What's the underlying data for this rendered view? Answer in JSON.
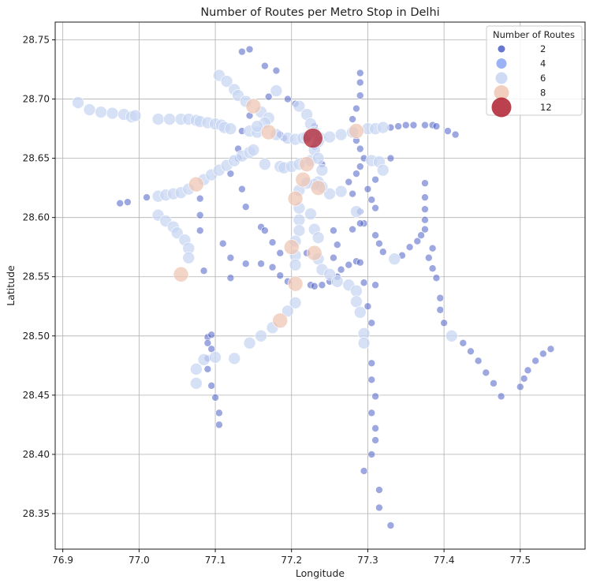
{
  "chart_data": {
    "type": "scatter",
    "title": "Number of Routes per Metro Stop in Delhi",
    "xlabel": "Longitude",
    "ylabel": "Latitude",
    "xlim": [
      76.89,
      77.585
    ],
    "ylim": [
      28.32,
      28.765
    ],
    "xticks": [
      "76.9",
      "77.0",
      "77.1",
      "77.2",
      "77.3",
      "77.4",
      "77.5"
    ],
    "yticks": [
      "28.35",
      "28.40",
      "28.45",
      "28.50",
      "28.55",
      "28.60",
      "28.65",
      "28.70",
      "28.75"
    ],
    "grid": true,
    "legend": {
      "title": "Number of Routes",
      "placement": "top-right",
      "entries": [
        {
          "label": "2",
          "routes": 2
        },
        {
          "label": "4",
          "routes": 4
        },
        {
          "label": "6",
          "routes": 6
        },
        {
          "label": "8",
          "routes": 8
        },
        {
          "label": "12",
          "routes": 12
        }
      ]
    },
    "points": [
      [
        76.92,
        28.697,
        6
      ],
      [
        76.935,
        28.691,
        6
      ],
      [
        76.95,
        28.689,
        6
      ],
      [
        76.965,
        28.688,
        6
      ],
      [
        76.98,
        28.687,
        6
      ],
      [
        76.99,
        28.685,
        6
      ],
      [
        76.995,
        28.686,
        6
      ],
      [
        77.025,
        28.683,
        6
      ],
      [
        77.04,
        28.683,
        6
      ],
      [
        77.055,
        28.683,
        6
      ],
      [
        77.065,
        28.683,
        6
      ],
      [
        77.075,
        28.682,
        6
      ],
      [
        77.08,
        28.681,
        6
      ],
      [
        77.09,
        28.68,
        6
      ],
      [
        77.1,
        28.679,
        6
      ],
      [
        77.108,
        28.678,
        6
      ],
      [
        77.112,
        28.676,
        6
      ],
      [
        77.12,
        28.675,
        6
      ],
      [
        77.135,
        28.673,
        2
      ],
      [
        77.145,
        28.673,
        6
      ],
      [
        77.155,
        28.672,
        6
      ],
      [
        77.17,
        28.672,
        8
      ],
      [
        77.18,
        28.67,
        6
      ],
      [
        77.195,
        28.667,
        6
      ],
      [
        77.205,
        28.666,
        6
      ],
      [
        77.215,
        28.667,
        6
      ],
      [
        77.22,
        28.668,
        6
      ],
      [
        77.228,
        28.667,
        12
      ],
      [
        77.238,
        28.667,
        6
      ],
      [
        77.25,
        28.668,
        6
      ],
      [
        77.265,
        28.67,
        6
      ],
      [
        77.28,
        28.672,
        6
      ],
      [
        77.285,
        28.673,
        8
      ],
      [
        77.3,
        28.675,
        6
      ],
      [
        77.31,
        28.675,
        6
      ],
      [
        77.32,
        28.676,
        6
      ],
      [
        77.33,
        28.676,
        2
      ],
      [
        77.34,
        28.677,
        2
      ],
      [
        77.35,
        28.678,
        2
      ],
      [
        77.36,
        28.678,
        2
      ],
      [
        77.375,
        28.678,
        2
      ],
      [
        77.385,
        28.678,
        2
      ],
      [
        77.39,
        28.677,
        2
      ],
      [
        77.405,
        28.673,
        2
      ],
      [
        77.415,
        28.67,
        2
      ],
      [
        76.975,
        28.612,
        2
      ],
      [
        76.985,
        28.613,
        2
      ],
      [
        77.01,
        28.617,
        2
      ],
      [
        77.025,
        28.618,
        6
      ],
      [
        77.035,
        28.619,
        6
      ],
      [
        77.045,
        28.62,
        6
      ],
      [
        77.055,
        28.621,
        6
      ],
      [
        77.065,
        28.624,
        6
      ],
      [
        77.075,
        28.628,
        8
      ],
      [
        77.085,
        28.632,
        6
      ],
      [
        77.095,
        28.636,
        6
      ],
      [
        77.105,
        28.64,
        6
      ],
      [
        77.115,
        28.644,
        6
      ],
      [
        77.125,
        28.648,
        6
      ],
      [
        77.135,
        28.652,
        6
      ],
      [
        77.145,
        28.655,
        6
      ],
      [
        77.15,
        28.657,
        6
      ],
      [
        77.165,
        28.645,
        6
      ],
      [
        77.185,
        28.643,
        6
      ],
      [
        77.19,
        28.642,
        6
      ],
      [
        77.2,
        28.643,
        6
      ],
      [
        77.21,
        28.645,
        6
      ],
      [
        77.22,
        28.645,
        8
      ],
      [
        77.225,
        28.648,
        6
      ],
      [
        77.025,
        28.602,
        6
      ],
      [
        77.035,
        28.597,
        6
      ],
      [
        77.045,
        28.592,
        6
      ],
      [
        77.05,
        28.587,
        6
      ],
      [
        77.06,
        28.581,
        6
      ],
      [
        77.065,
        28.574,
        6
      ],
      [
        77.065,
        28.566,
        6
      ],
      [
        77.055,
        28.552,
        8
      ],
      [
        77.105,
        28.72,
        6
      ],
      [
        77.115,
        28.715,
        6
      ],
      [
        77.125,
        28.708,
        6
      ],
      [
        77.13,
        28.703,
        6
      ],
      [
        77.14,
        28.698,
        6
      ],
      [
        77.15,
        28.694,
        8
      ],
      [
        77.16,
        28.689,
        6
      ],
      [
        77.17,
        28.684,
        6
      ],
      [
        77.165,
        28.68,
        6
      ],
      [
        77.155,
        28.677,
        6
      ],
      [
        77.135,
        28.74,
        2
      ],
      [
        77.145,
        28.742,
        2
      ],
      [
        77.165,
        28.728,
        2
      ],
      [
        77.18,
        28.724,
        2
      ],
      [
        77.18,
        28.707,
        6
      ],
      [
        77.17,
        28.702,
        2
      ],
      [
        77.195,
        28.7,
        2
      ],
      [
        77.205,
        28.696,
        2
      ],
      [
        77.21,
        28.694,
        6
      ],
      [
        77.22,
        28.687,
        6
      ],
      [
        77.225,
        28.679,
        6
      ],
      [
        77.23,
        28.672,
        6
      ],
      [
        77.235,
        28.664,
        6
      ],
      [
        77.23,
        28.657,
        6
      ],
      [
        77.235,
        28.65,
        6
      ],
      [
        77.24,
        28.64,
        6
      ],
      [
        77.235,
        28.63,
        6
      ],
      [
        77.235,
        28.625,
        8
      ],
      [
        77.29,
        28.722,
        2
      ],
      [
        77.29,
        28.714,
        2
      ],
      [
        77.29,
        28.703,
        2
      ],
      [
        77.285,
        28.692,
        2
      ],
      [
        77.28,
        28.683,
        2
      ],
      [
        77.285,
        28.665,
        2
      ],
      [
        77.29,
        28.658,
        2
      ],
      [
        77.295,
        28.65,
        2
      ],
      [
        77.29,
        28.643,
        2
      ],
      [
        77.285,
        28.637,
        2
      ],
      [
        77.305,
        28.648,
        6
      ],
      [
        77.315,
        28.647,
        6
      ],
      [
        77.32,
        28.64,
        6
      ],
      [
        77.33,
        28.65,
        2
      ],
      [
        77.31,
        28.632,
        2
      ],
      [
        77.3,
        28.624,
        2
      ],
      [
        77.305,
        28.615,
        2
      ],
      [
        77.31,
        28.608,
        2
      ],
      [
        77.295,
        28.595,
        2
      ],
      [
        77.31,
        28.585,
        2
      ],
      [
        77.315,
        28.578,
        2
      ],
      [
        77.32,
        28.571,
        2
      ],
      [
        77.335,
        28.565,
        6
      ],
      [
        77.345,
        28.568,
        2
      ],
      [
        77.355,
        28.575,
        2
      ],
      [
        77.365,
        28.58,
        2
      ],
      [
        77.37,
        28.585,
        2
      ],
      [
        77.375,
        28.59,
        2
      ],
      [
        77.375,
        28.598,
        2
      ],
      [
        77.375,
        28.607,
        2
      ],
      [
        77.375,
        28.617,
        2
      ],
      [
        77.375,
        28.629,
        2
      ],
      [
        77.265,
        28.622,
        6
      ],
      [
        77.25,
        28.62,
        6
      ],
      [
        77.24,
        28.626,
        6
      ],
      [
        77.23,
        28.628,
        6
      ],
      [
        77.22,
        28.629,
        6
      ],
      [
        77.215,
        28.632,
        8
      ],
      [
        77.21,
        28.623,
        6
      ],
      [
        77.205,
        28.616,
        8
      ],
      [
        77.21,
        28.608,
        6
      ],
      [
        77.21,
        28.598,
        6
      ],
      [
        77.21,
        28.589,
        6
      ],
      [
        77.205,
        28.58,
        6
      ],
      [
        77.2,
        28.575,
        8
      ],
      [
        77.205,
        28.568,
        6
      ],
      [
        77.205,
        28.56,
        6
      ],
      [
        77.205,
        28.544,
        8
      ],
      [
        77.205,
        28.528,
        6
      ],
      [
        77.195,
        28.521,
        6
      ],
      [
        77.185,
        28.513,
        8
      ],
      [
        77.175,
        28.507,
        6
      ],
      [
        77.16,
        28.5,
        6
      ],
      [
        77.145,
        28.494,
        6
      ],
      [
        77.125,
        28.481,
        6
      ],
      [
        77.1,
        28.482,
        6
      ],
      [
        77.085,
        28.48,
        6
      ],
      [
        77.075,
        28.472,
        6
      ],
      [
        77.075,
        28.46,
        6
      ],
      [
        77.225,
        28.603,
        6
      ],
      [
        77.23,
        28.59,
        6
      ],
      [
        77.235,
        28.583,
        6
      ],
      [
        77.23,
        28.57,
        8
      ],
      [
        77.235,
        28.565,
        6
      ],
      [
        77.24,
        28.556,
        6
      ],
      [
        77.25,
        28.552,
        6
      ],
      [
        77.26,
        28.546,
        6
      ],
      [
        77.275,
        28.543,
        6
      ],
      [
        77.285,
        28.538,
        6
      ],
      [
        77.285,
        28.529,
        6
      ],
      [
        77.29,
        28.52,
        6
      ],
      [
        77.295,
        28.502,
        6
      ],
      [
        77.295,
        28.494,
        6
      ],
      [
        77.19,
        28.667,
        2
      ],
      [
        77.185,
        28.67,
        2
      ],
      [
        77.23,
        28.677,
        2
      ],
      [
        77.22,
        28.667,
        2
      ],
      [
        77.23,
        28.66,
        2
      ],
      [
        77.24,
        28.645,
        2
      ],
      [
        77.275,
        28.63,
        2
      ],
      [
        77.28,
        28.62,
        2
      ],
      [
        77.285,
        28.605,
        6
      ],
      [
        77.29,
        28.605,
        2
      ],
      [
        77.29,
        28.595,
        2
      ],
      [
        77.28,
        28.59,
        2
      ],
      [
        77.145,
        28.686,
        2
      ],
      [
        77.13,
        28.658,
        2
      ],
      [
        77.13,
        28.65,
        2
      ],
      [
        77.12,
        28.637,
        2
      ],
      [
        77.135,
        28.624,
        2
      ],
      [
        77.14,
        28.609,
        2
      ],
      [
        77.08,
        28.616,
        2
      ],
      [
        77.08,
        28.602,
        2
      ],
      [
        77.08,
        28.589,
        2
      ],
      [
        77.085,
        28.555,
        2
      ],
      [
        77.11,
        28.578,
        2
      ],
      [
        77.12,
        28.566,
        2
      ],
      [
        77.12,
        28.549,
        2
      ],
      [
        77.14,
        28.561,
        2
      ],
      [
        77.16,
        28.592,
        2
      ],
      [
        77.165,
        28.589,
        2
      ],
      [
        77.175,
        28.579,
        2
      ],
      [
        77.185,
        28.57,
        2
      ],
      [
        77.16,
        28.561,
        2
      ],
      [
        77.175,
        28.558,
        2
      ],
      [
        77.185,
        28.551,
        2
      ],
      [
        77.195,
        28.546,
        2
      ],
      [
        77.225,
        28.543,
        2
      ],
      [
        77.23,
        28.542,
        2
      ],
      [
        77.24,
        28.543,
        2
      ],
      [
        77.25,
        28.546,
        2
      ],
      [
        77.26,
        28.55,
        2
      ],
      [
        77.265,
        28.556,
        2
      ],
      [
        77.275,
        28.56,
        2
      ],
      [
        77.285,
        28.563,
        2
      ],
      [
        77.29,
        28.562,
        2
      ],
      [
        77.255,
        28.566,
        2
      ],
      [
        77.26,
        28.577,
        2
      ],
      [
        77.255,
        28.589,
        2
      ],
      [
        77.22,
        28.57,
        2
      ],
      [
        77.09,
        28.499,
        2
      ],
      [
        77.095,
        28.501,
        2
      ],
      [
        77.09,
        28.494,
        2
      ],
      [
        77.095,
        28.489,
        2
      ],
      [
        77.09,
        28.481,
        2
      ],
      [
        77.09,
        28.472,
        2
      ],
      [
        77.095,
        28.458,
        2
      ],
      [
        77.1,
        28.448,
        2
      ],
      [
        77.105,
        28.435,
        2
      ],
      [
        77.105,
        28.425,
        2
      ],
      [
        77.295,
        28.545,
        2
      ],
      [
        77.31,
        28.543,
        2
      ],
      [
        77.3,
        28.525,
        2
      ],
      [
        77.305,
        28.511,
        2
      ],
      [
        77.305,
        28.477,
        2
      ],
      [
        77.305,
        28.463,
        2
      ],
      [
        77.31,
        28.449,
        2
      ],
      [
        77.305,
        28.435,
        2
      ],
      [
        77.31,
        28.422,
        2
      ],
      [
        77.31,
        28.412,
        2
      ],
      [
        77.305,
        28.4,
        2
      ],
      [
        77.295,
        28.386,
        2
      ],
      [
        77.315,
        28.37,
        2
      ],
      [
        77.315,
        28.355,
        2
      ],
      [
        77.33,
        28.34,
        2
      ],
      [
        77.385,
        28.574,
        2
      ],
      [
        77.38,
        28.566,
        2
      ],
      [
        77.385,
        28.557,
        2
      ],
      [
        77.39,
        28.549,
        2
      ],
      [
        77.395,
        28.532,
        2
      ],
      [
        77.395,
        28.522,
        2
      ],
      [
        77.4,
        28.511,
        2
      ],
      [
        77.41,
        28.5,
        6
      ],
      [
        77.425,
        28.494,
        2
      ],
      [
        77.435,
        28.487,
        2
      ],
      [
        77.445,
        28.479,
        2
      ],
      [
        77.455,
        28.469,
        2
      ],
      [
        77.465,
        28.46,
        2
      ],
      [
        77.475,
        28.449,
        2
      ],
      [
        77.5,
        28.457,
        2
      ],
      [
        77.505,
        28.464,
        2
      ],
      [
        77.51,
        28.471,
        2
      ],
      [
        77.52,
        28.479,
        2
      ],
      [
        77.53,
        28.485,
        2
      ],
      [
        77.54,
        28.489,
        2
      ]
    ]
  }
}
